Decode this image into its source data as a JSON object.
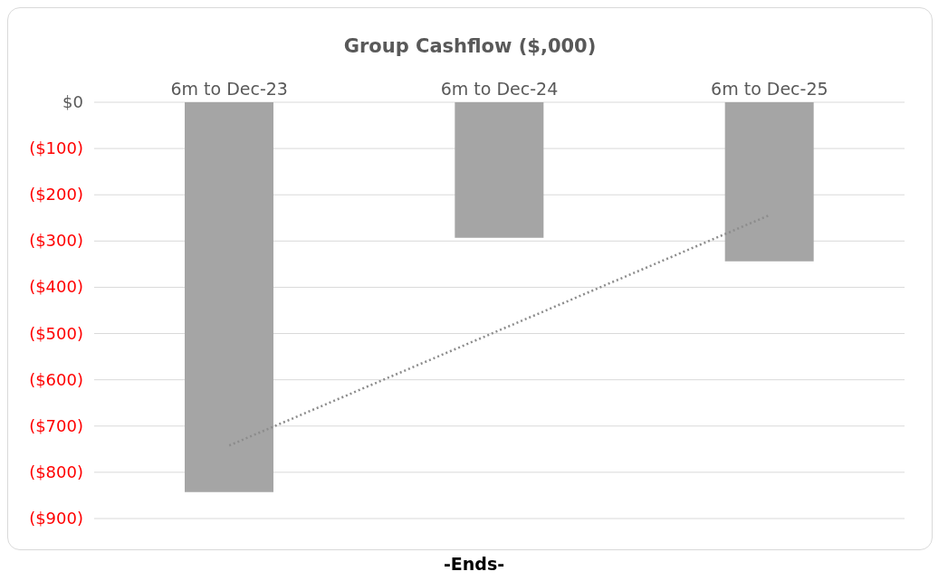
{
  "chart_data": {
    "type": "bar",
    "title": "Group Cashflow ($,000)",
    "categories": [
      "6m to Dec-23",
      "6m to Dec-24",
      "6m to Dec-25"
    ],
    "series": [
      {
        "color": "#a5a5a5",
        "values": [
          -843,
          -293,
          -344
        ]
      },
      {
        "type": "line",
        "color": "#8c8c8c",
        "line_style": "dotted",
        "values": [
          -742,
          -493,
          -244
        ]
      }
    ],
    "ylim": [
      -900,
      0
    ],
    "yticks": [
      {
        "value": 0,
        "label": "$0"
      },
      {
        "value": -100,
        "label": "($100)"
      },
      {
        "value": -200,
        "label": "($200)"
      },
      {
        "value": -300,
        "label": "($300)"
      },
      {
        "value": -400,
        "label": "($400)"
      },
      {
        "value": -500,
        "label": "($500)"
      },
      {
        "value": -600,
        "label": "($600)"
      },
      {
        "value": -700,
        "label": "($700)"
      },
      {
        "value": -800,
        "label": "($800)"
      },
      {
        "value": -900,
        "label": "($900)"
      }
    ],
    "grid": "y",
    "legend": false,
    "annotations": [
      "-Ends-"
    ]
  }
}
